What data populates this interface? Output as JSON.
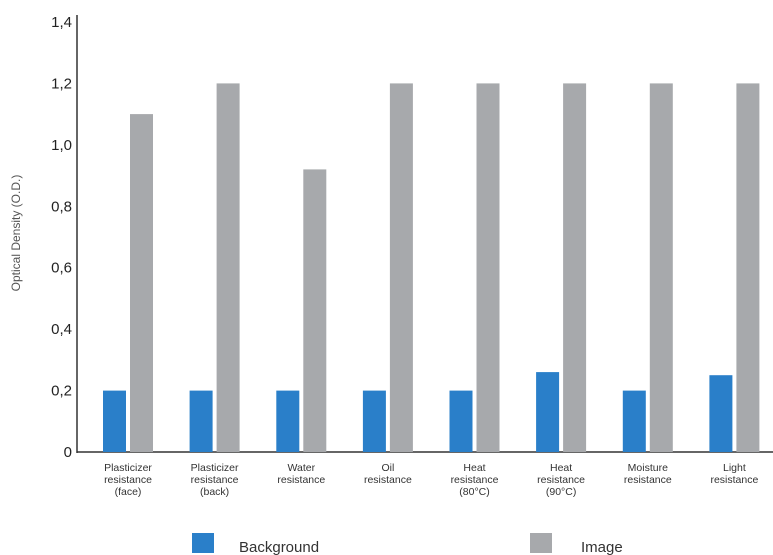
{
  "chart_data": {
    "type": "bar",
    "title": "",
    "xlabel": "",
    "ylabel": "Optical Density (O.D.)",
    "ylim": [
      0,
      1.4
    ],
    "yticks": [
      "0",
      "0,2",
      "0,4",
      "0,6",
      "0,8",
      "1,0",
      "1,2",
      "1,4"
    ],
    "grid": false,
    "legend_position": "bottom",
    "categories": [
      [
        "Plasticizer",
        "resistance",
        "(face)"
      ],
      [
        "Plasticizer",
        "resistance",
        "(back)"
      ],
      [
        "Water",
        "resistance"
      ],
      [
        "Oil",
        "resistance"
      ],
      [
        "Heat",
        "resistance",
        "(80°C)"
      ],
      [
        "Heat",
        "resistance",
        "(90°C)"
      ],
      [
        "Moisture",
        "resistance"
      ],
      [
        "Light",
        "resistance"
      ]
    ],
    "series": [
      {
        "name": "Background",
        "color": "#2a7fc9",
        "values": [
          0.2,
          0.2,
          0.2,
          0.2,
          0.2,
          0.26,
          0.2,
          0.25
        ]
      },
      {
        "name": "Image",
        "color": "#a7a9ac",
        "values": [
          1.1,
          1.2,
          0.92,
          1.2,
          1.2,
          1.2,
          1.2,
          1.2
        ]
      }
    ]
  }
}
